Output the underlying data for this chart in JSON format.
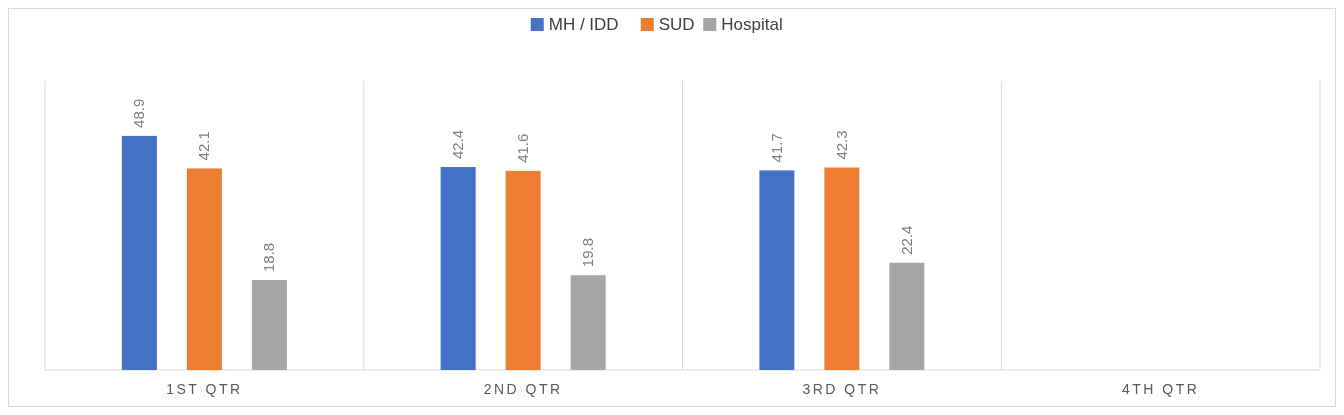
{
  "chart_data": {
    "type": "bar",
    "categories": [
      "1ST QTR",
      "2ND QTR",
      "3RD QTR",
      "4TH QTR"
    ],
    "series": [
      {
        "name": "MH / IDD",
        "color": "#4472c4",
        "values": [
          48.9,
          42.4,
          41.7,
          null
        ]
      },
      {
        "name": "SUD",
        "color": "#ed7d31",
        "values": [
          42.1,
          41.6,
          42.3,
          null
        ]
      },
      {
        "name": "Hospital",
        "color": "#a5a5a5",
        "values": [
          18.8,
          19.8,
          22.4,
          null
        ]
      }
    ],
    "data_labels": true,
    "legend": "top",
    "grid": "x"
  }
}
